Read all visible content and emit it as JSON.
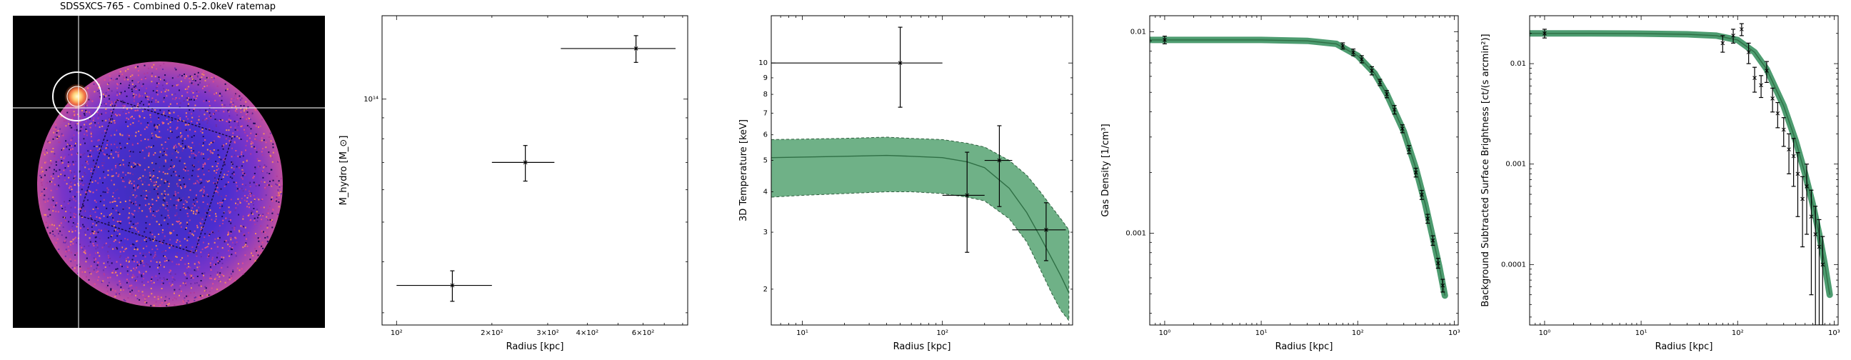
{
  "image_panel": {
    "title": "SDSSXCS-765 - Combined 0.5-2.0keV ratemap",
    "colormap": "magma"
  },
  "chart_data": [
    {
      "type": "scatter",
      "title": "",
      "xlabel": "Radius [kpc]",
      "ylabel": "M_hydro [M_⊙]",
      "xscale": "log",
      "yscale": "log",
      "xlim": [
        90,
        830
      ],
      "ylim": [
        28000000000000.0,
        160000000000000.0
      ],
      "xticks": [
        {
          "v": 100,
          "label": "10²"
        },
        {
          "v": 200,
          "label": "2×10²"
        },
        {
          "v": 300,
          "label": "3×10²"
        },
        {
          "v": 400,
          "label": "4×10²"
        },
        {
          "v": 600,
          "label": "6×10²"
        }
      ],
      "yticks": [
        {
          "v": 100000000000000.0,
          "label": "10¹⁴"
        }
      ],
      "points": [
        {
          "x": 150,
          "y": 35000000000000.0,
          "xlo": 100,
          "xhi": 200,
          "ylo": 32000000000000.0,
          "yhi": 38000000000000.0
        },
        {
          "x": 255,
          "y": 70000000000000.0,
          "xlo": 200,
          "xhi": 315,
          "ylo": 63000000000000.0,
          "yhi": 77000000000000.0
        },
        {
          "x": 570,
          "y": 133000000000000.0,
          "xlo": 330,
          "xhi": 760,
          "ylo": 123000000000000.0,
          "yhi": 143000000000000.0
        }
      ]
    },
    {
      "type": "line",
      "title": "",
      "xlabel": "Radius [kpc]",
      "ylabel": "3D Temperature [keV]",
      "xscale": "log",
      "yscale": "log",
      "xlim": [
        6,
        850
      ],
      "ylim": [
        1.55,
        14
      ],
      "xticks": [
        {
          "v": 10,
          "label": "10¹"
        },
        {
          "v": 100,
          "label": "10²"
        }
      ],
      "yticks": [
        {
          "v": 2,
          "label": "2"
        },
        {
          "v": 3,
          "label": "3"
        },
        {
          "v": 4,
          "label": "4"
        },
        {
          "v": 5,
          "label": "5"
        },
        {
          "v": 6,
          "label": "6"
        },
        {
          "v": 7,
          "label": "7"
        },
        {
          "v": 8,
          "label": "8"
        },
        {
          "v": 9,
          "label": "9"
        },
        {
          "v": 10,
          "label": "10"
        }
      ],
      "points": [
        {
          "x": 50,
          "y": 10.0,
          "xlo": 6,
          "xhi": 100,
          "ylo": 7.3,
          "yhi": 12.9
        },
        {
          "x": 150,
          "y": 3.9,
          "xlo": 100,
          "xhi": 200,
          "ylo": 2.6,
          "yhi": 5.3
        },
        {
          "x": 255,
          "y": 5.0,
          "xlo": 200,
          "xhi": 315,
          "ylo": 3.6,
          "yhi": 6.4
        },
        {
          "x": 550,
          "y": 3.05,
          "xlo": 315,
          "xhi": 760,
          "ylo": 2.45,
          "yhi": 3.7
        }
      ],
      "model": {
        "x": [
          6,
          10,
          20,
          40,
          60,
          100,
          150,
          200,
          300,
          400,
          500,
          600,
          700,
          800
        ],
        "y": [
          5.1,
          5.12,
          5.15,
          5.18,
          5.15,
          5.1,
          4.95,
          4.75,
          4.1,
          3.45,
          2.9,
          2.5,
          2.2,
          1.95
        ],
        "lower": [
          3.85,
          3.9,
          3.95,
          4.0,
          4.0,
          3.95,
          3.85,
          3.75,
          3.3,
          2.8,
          2.3,
          1.95,
          1.72,
          1.6
        ],
        "upper": [
          5.8,
          5.82,
          5.85,
          5.9,
          5.85,
          5.8,
          5.65,
          5.5,
          5.0,
          4.5,
          4.0,
          3.6,
          3.3,
          3.05
        ]
      },
      "band_color": "#5fa87a"
    },
    {
      "type": "line",
      "title": "",
      "xlabel": "Radius [kpc]",
      "ylabel": "Gas Density [1/cm³]",
      "xscale": "log",
      "yscale": "log",
      "xlim": [
        0.7,
        1100
      ],
      "ylim": [
        0.00035,
        0.012
      ],
      "xticks": [
        {
          "v": 1,
          "label": "10⁰"
        },
        {
          "v": 10,
          "label": "10¹"
        },
        {
          "v": 100,
          "label": "10²"
        },
        {
          "v": 1000,
          "label": "10³"
        }
      ],
      "yticks": [
        {
          "v": 0.001,
          "label": "0.001"
        },
        {
          "v": 0.01,
          "label": "0.01"
        }
      ],
      "points": [
        {
          "x": 1,
          "y": 0.0091,
          "yerr": 0.0004
        },
        {
          "x": 70,
          "y": 0.0085,
          "yerr": 0.0003
        },
        {
          "x": 90,
          "y": 0.0079,
          "yerr": 0.0003
        },
        {
          "x": 110,
          "y": 0.0073,
          "yerr": 0.0003
        },
        {
          "x": 140,
          "y": 0.0064,
          "yerr": 0.0003
        },
        {
          "x": 170,
          "y": 0.0056,
          "yerr": 0.0002
        },
        {
          "x": 200,
          "y": 0.0049,
          "yerr": 0.0002
        },
        {
          "x": 240,
          "y": 0.0041,
          "yerr": 0.0002
        },
        {
          "x": 290,
          "y": 0.0033,
          "yerr": 0.00015
        },
        {
          "x": 340,
          "y": 0.0026,
          "yerr": 0.00012
        },
        {
          "x": 400,
          "y": 0.002,
          "yerr": 0.0001
        },
        {
          "x": 460,
          "y": 0.00155,
          "yerr": 8e-05
        },
        {
          "x": 530,
          "y": 0.00118,
          "yerr": 6e-05
        },
        {
          "x": 600,
          "y": 0.00092,
          "yerr": 5e-05
        },
        {
          "x": 680,
          "y": 0.00071,
          "yerr": 4e-05
        },
        {
          "x": 760,
          "y": 0.00055,
          "yerr": 4e-05
        }
      ],
      "model": {
        "x": [
          0.7,
          1,
          3,
          10,
          30,
          60,
          100,
          150,
          200,
          300,
          400,
          500,
          600,
          700,
          800
        ],
        "y": [
          0.0091,
          0.0091,
          0.0091,
          0.0091,
          0.009,
          0.0087,
          0.0076,
          0.0062,
          0.0049,
          0.0032,
          0.0021,
          0.0014,
          0.00095,
          0.00068,
          0.00049
        ]
      },
      "band_color": "#2e8b57"
    },
    {
      "type": "line",
      "title": "",
      "xlabel": "Radius [kpc]",
      "ylabel": "Background Subtracted Surface Brightness [ct/(s arcmin²)]",
      "xscale": "log",
      "yscale": "log",
      "xlim": [
        0.7,
        1100
      ],
      "ylim": [
        2.5e-05,
        0.03
      ],
      "xticks": [
        {
          "v": 1,
          "label": "10⁰"
        },
        {
          "v": 10,
          "label": "10¹"
        },
        {
          "v": 100,
          "label": "10²"
        },
        {
          "v": 1000,
          "label": "10³"
        }
      ],
      "yticks": [
        {
          "v": 0.0001,
          "label": "0.0001"
        },
        {
          "v": 0.001,
          "label": "0.001"
        },
        {
          "v": 0.01,
          "label": "0.01"
        }
      ],
      "points": [
        {
          "x": 1,
          "y": 0.02,
          "yerr": 0.002
        },
        {
          "x": 70,
          "y": 0.016,
          "yerr": 0.003
        },
        {
          "x": 90,
          "y": 0.019,
          "yerr": 0.003
        },
        {
          "x": 110,
          "y": 0.022,
          "yerr": 0.003
        },
        {
          "x": 130,
          "y": 0.013,
          "yerr": 0.003
        },
        {
          "x": 150,
          "y": 0.0072,
          "yerr": 0.002
        },
        {
          "x": 175,
          "y": 0.0061,
          "yerr": 0.0015
        },
        {
          "x": 200,
          "y": 0.0085,
          "yerr": 0.002
        },
        {
          "x": 230,
          "y": 0.0045,
          "yerr": 0.0012
        },
        {
          "x": 260,
          "y": 0.0032,
          "yerr": 0.0009
        },
        {
          "x": 300,
          "y": 0.0022,
          "yerr": 0.0007
        },
        {
          "x": 340,
          "y": 0.0014,
          "yerr": 0.0006
        },
        {
          "x": 380,
          "y": 0.0012,
          "yerr": 0.0006
        },
        {
          "x": 420,
          "y": 0.0008,
          "yerr": 0.0005
        },
        {
          "x": 470,
          "y": 0.00045,
          "yerr": 0.0003
        },
        {
          "x": 520,
          "y": 0.0006,
          "yerr": 0.0004
        },
        {
          "x": 580,
          "y": 0.0003,
          "yerr": 0.00025
        },
        {
          "x": 640,
          "y": 0.0002,
          "yerr": 0.00018
        },
        {
          "x": 700,
          "y": 0.00015,
          "yerr": 0.00013
        },
        {
          "x": 760,
          "y": 0.0001,
          "yerr": 9e-05
        }
      ],
      "model": {
        "x": [
          0.7,
          1,
          3,
          10,
          30,
          60,
          100,
          150,
          200,
          300,
          400,
          500,
          600,
          700,
          800,
          900
        ],
        "y": [
          0.02,
          0.02,
          0.02,
          0.0199,
          0.0196,
          0.019,
          0.0172,
          0.013,
          0.0088,
          0.0038,
          0.0017,
          0.0008,
          0.0004,
          0.0002,
          0.0001,
          5e-05
        ]
      },
      "band_color": "#2e8b57"
    }
  ]
}
